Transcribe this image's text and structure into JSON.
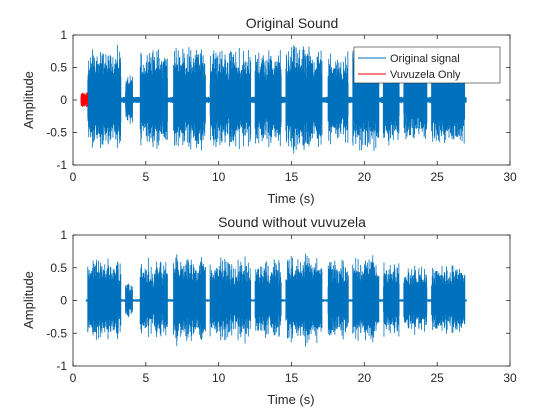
{
  "chart_data": [
    {
      "type": "line",
      "title": "Original Sound",
      "xlabel": "Time (s)",
      "ylabel": "Amplitude",
      "xlim": [
        0,
        30
      ],
      "ylim": [
        -1,
        1
      ],
      "xticks": [
        0,
        5,
        10,
        15,
        20,
        25,
        30
      ],
      "yticks": [
        -1,
        -0.5,
        0,
        0.5,
        1
      ],
      "grid": false,
      "legend_position": "top-right",
      "series": [
        {
          "name": "Original signal",
          "color": "#0072BD",
          "signal": {
            "start": 0.55,
            "end": 27.0,
            "baseline_amplitude": 0.05,
            "bursts": [
              {
                "start": 1.0,
                "end": 3.3,
                "peak": 0.88
              },
              {
                "start": 3.6,
                "end": 4.1,
                "peak": 0.4
              },
              {
                "start": 4.6,
                "end": 6.5,
                "peak": 0.85
              },
              {
                "start": 6.9,
                "end": 9.1,
                "peak": 0.9
              },
              {
                "start": 9.4,
                "end": 12.2,
                "peak": 0.85
              },
              {
                "start": 12.5,
                "end": 14.3,
                "peak": 0.8
              },
              {
                "start": 14.6,
                "end": 17.1,
                "peak": 0.88
              },
              {
                "start": 17.5,
                "end": 18.9,
                "peak": 0.8
              },
              {
                "start": 19.2,
                "end": 21.0,
                "peak": 0.85
              },
              {
                "start": 21.3,
                "end": 22.4,
                "peak": 0.82
              },
              {
                "start": 22.7,
                "end": 24.3,
                "peak": 0.72
              },
              {
                "start": 24.6,
                "end": 26.9,
                "peak": 0.84
              }
            ]
          }
        },
        {
          "name": "Vuvuzela Only",
          "color": "#FF0000",
          "signal": {
            "start": 0.55,
            "end": 1.0,
            "baseline_amplitude": 0.12,
            "bursts": []
          }
        }
      ]
    },
    {
      "type": "line",
      "title": "Sound without vuvuzela",
      "xlabel": "Time (s)",
      "ylabel": "Amplitude",
      "xlim": [
        0,
        30
      ],
      "ylim": [
        -1,
        1
      ],
      "xticks": [
        0,
        5,
        10,
        15,
        20,
        25,
        30
      ],
      "yticks": [
        -1,
        -0.5,
        0,
        0.5,
        1
      ],
      "grid": false,
      "series": [
        {
          "color": "#0072BD",
          "signal": {
            "start": 0.9,
            "end": 27.0,
            "baseline_amplitude": 0.02,
            "bursts": [
              {
                "start": 1.0,
                "end": 3.3,
                "peak": 0.68
              },
              {
                "start": 3.6,
                "end": 4.1,
                "peak": 0.3
              },
              {
                "start": 4.6,
                "end": 6.5,
                "peak": 0.66
              },
              {
                "start": 6.9,
                "end": 9.1,
                "peak": 0.72
              },
              {
                "start": 9.4,
                "end": 12.2,
                "peak": 0.7
              },
              {
                "start": 12.5,
                "end": 14.3,
                "peak": 0.65
              },
              {
                "start": 14.6,
                "end": 17.1,
                "peak": 0.72
              },
              {
                "start": 17.5,
                "end": 18.9,
                "peak": 0.66
              },
              {
                "start": 19.2,
                "end": 21.0,
                "peak": 0.7
              },
              {
                "start": 21.3,
                "end": 22.4,
                "peak": 0.64
              },
              {
                "start": 22.7,
                "end": 24.3,
                "peak": 0.55
              },
              {
                "start": 24.6,
                "end": 26.9,
                "peak": 0.58
              }
            ]
          }
        }
      ]
    }
  ]
}
